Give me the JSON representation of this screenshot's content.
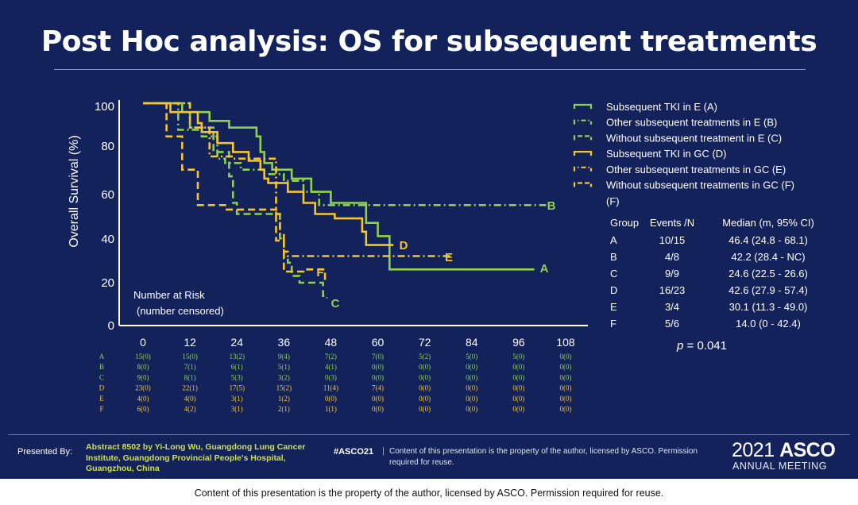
{
  "title": "Post Hoc analysis: OS for subsequent treatments",
  "chart_data": {
    "type": "line",
    "subtype": "kaplan-meier",
    "ylabel": "Overall Survival (%)",
    "xlim": [
      0,
      108
    ],
    "ylim": [
      0,
      100
    ],
    "xticks": [
      "0",
      "12",
      "24",
      "36",
      "48",
      "60",
      "72",
      "84",
      "96",
      "108"
    ],
    "yticks": [
      "0",
      "20",
      "40",
      "60",
      "80",
      "100"
    ],
    "series": [
      {
        "key": "A",
        "name": "Subsequent TKI in E (A)",
        "color": "#8fd14f",
        "dash": "solid",
        "end_label": "A",
        "steps": [
          [
            0,
            100
          ],
          [
            6,
            100
          ],
          [
            10,
            96
          ],
          [
            14,
            96
          ],
          [
            17,
            92
          ],
          [
            20,
            92
          ],
          [
            22,
            89
          ],
          [
            28,
            89
          ],
          [
            29,
            85
          ],
          [
            30,
            78
          ],
          [
            31,
            73
          ],
          [
            33,
            70
          ],
          [
            38,
            66
          ],
          [
            41,
            66
          ],
          [
            43,
            60
          ],
          [
            48,
            55
          ],
          [
            52,
            55
          ],
          [
            57,
            46
          ],
          [
            60,
            40
          ],
          [
            63,
            25
          ],
          [
            100,
            25
          ]
        ]
      },
      {
        "key": "B",
        "name": "Other subsequent treatments in E  (B)",
        "color": "#8fd14f",
        "dash": "dashdot",
        "end_label": "B",
        "steps": [
          [
            0,
            100
          ],
          [
            8,
            100
          ],
          [
            9,
            88
          ],
          [
            14,
            88
          ],
          [
            15,
            85
          ],
          [
            18,
            85
          ],
          [
            19,
            75
          ],
          [
            20,
            75
          ],
          [
            21,
            73
          ],
          [
            24,
            73
          ],
          [
            25,
            70
          ],
          [
            30,
            70
          ],
          [
            31,
            68
          ],
          [
            35,
            68
          ],
          [
            36,
            65
          ],
          [
            40,
            65
          ],
          [
            41,
            60
          ],
          [
            44,
            60
          ],
          [
            45,
            54
          ],
          [
            103,
            54
          ]
        ]
      },
      {
        "key": "C",
        "name": "Without subsequent treatment in E  (C)",
        "color": "#8fd14f",
        "dash": "dash",
        "end_label": "C",
        "steps": [
          [
            0,
            100
          ],
          [
            11,
            100
          ],
          [
            12,
            89
          ],
          [
            17,
            89
          ],
          [
            18,
            78
          ],
          [
            21,
            78
          ],
          [
            22,
            67
          ],
          [
            23,
            55
          ],
          [
            24,
            50
          ],
          [
            34,
            50
          ],
          [
            35,
            39
          ],
          [
            36,
            30
          ],
          [
            37,
            28
          ],
          [
            38,
            22
          ],
          [
            39,
            22
          ],
          [
            40,
            19
          ],
          [
            45,
            19
          ],
          [
            46,
            13
          ],
          [
            47,
            12
          ]
        ]
      },
      {
        "key": "D",
        "name": "Subsequent TKI in GC  (D)",
        "color": "#f4c531",
        "dash": "solid",
        "end_label": "D",
        "steps": [
          [
            0,
            100
          ],
          [
            6,
            100
          ],
          [
            7,
            96
          ],
          [
            12,
            96
          ],
          [
            14,
            91
          ],
          [
            15,
            87
          ],
          [
            18,
            87
          ],
          [
            19,
            82
          ],
          [
            22,
            82
          ],
          [
            23,
            78
          ],
          [
            26,
            78
          ],
          [
            27,
            74
          ],
          [
            29,
            74
          ],
          [
            30,
            70
          ],
          [
            31,
            66
          ],
          [
            32,
            64
          ],
          [
            36,
            64
          ],
          [
            37,
            60
          ],
          [
            40,
            60
          ],
          [
            41,
            55
          ],
          [
            43,
            55
          ],
          [
            44,
            50
          ],
          [
            48,
            50
          ],
          [
            49,
            48
          ],
          [
            55,
            48
          ],
          [
            56,
            42
          ],
          [
            57,
            36
          ],
          [
            64,
            36
          ]
        ]
      },
      {
        "key": "E",
        "name": "Other subsequent treatments in GC  (E)",
        "color": "#f4c531",
        "dash": "dashdot",
        "end_label": "E",
        "steps": [
          [
            0,
            100
          ],
          [
            11,
            100
          ],
          [
            12,
            89
          ],
          [
            16,
            89
          ],
          [
            17,
            76
          ],
          [
            22,
            76
          ],
          [
            23,
            75
          ],
          [
            33,
            75
          ],
          [
            34,
            50
          ],
          [
            35,
            41
          ],
          [
            36,
            33
          ],
          [
            37,
            31
          ],
          [
            79,
            31
          ]
        ]
      },
      {
        "key": "F",
        "name": "Without subsequent treatments in GC  (F)",
        "color": "#f4c531",
        "dash": "dash",
        "end_label": "F",
        "steps": [
          [
            0,
            100
          ],
          [
            5,
            100
          ],
          [
            6,
            85
          ],
          [
            9,
            85
          ],
          [
            10,
            70
          ],
          [
            13,
            70
          ],
          [
            14,
            54
          ],
          [
            20,
            54
          ],
          [
            21,
            52
          ],
          [
            33,
            52
          ],
          [
            34,
            38
          ],
          [
            36,
            24
          ],
          [
            40,
            24
          ],
          [
            41,
            25
          ],
          [
            46,
            25
          ],
          [
            46.5,
            20
          ]
        ]
      }
    ],
    "legend_extra": "(F)",
    "table": {
      "headers": [
        "Group",
        "Events /N",
        "Median (m, 95% CI)"
      ],
      "rows": [
        [
          "A",
          "10/15",
          "46.4 (24.8 - 68.1)"
        ],
        [
          "B",
          "4/8",
          "42.2 (28.4 - NC)"
        ],
        [
          "C",
          "9/9",
          "24.6 (22.5 - 26.6)"
        ],
        [
          "D",
          "16/23",
          "42.6 (27.9 - 57.4)"
        ],
        [
          "E",
          "3/4",
          "30.1 (11.3 - 49.0)"
        ],
        [
          "F",
          "5/6",
          "14.0 (0 - 42.4)"
        ]
      ]
    },
    "p_label": "p",
    "p_value": " = 0.041",
    "risk": {
      "title": "Number at Risk",
      "subtitle": "(number censored)",
      "rows": [
        {
          "label": "A",
          "color": "#8fd14f",
          "values": [
            "15(0)",
            "15(0)",
            "13(2)",
            "9(4)",
            "7(2)",
            "7(0)",
            "5(2)",
            "5(0)",
            "5(0)",
            "0(0)"
          ]
        },
        {
          "label": "B",
          "color": "#8fd14f",
          "values": [
            "8(0)",
            "7(1)",
            "6(1)",
            "5(1)",
            "4(1)",
            "0(0)",
            "0(0)",
            "0(0)",
            "0(0)",
            "0(0)"
          ]
        },
        {
          "label": "C",
          "color": "#8fd14f",
          "values": [
            "9(0)",
            "8(1)",
            "5(3)",
            "3(2)",
            "0(3)",
            "0(0)",
            "0(0)",
            "0(0)",
            "0(0)",
            "0(0)"
          ]
        },
        {
          "label": "D",
          "color": "#f4c531",
          "values": [
            "23(0)",
            "22(1)",
            "17(5)",
            "15(2)",
            "11(4)",
            "7(4)",
            "0(0)",
            "0(0)",
            "0(0)",
            "0(0)"
          ]
        },
        {
          "label": "E",
          "color": "#f4c531",
          "values": [
            "4(0)",
            "4(0)",
            "3(1)",
            "1(2)",
            "0(0)",
            "0(0)",
            "0(0)",
            "0(0)",
            "0(0)",
            "0(0)"
          ]
        },
        {
          "label": "F",
          "color": "#f4c531",
          "values": [
            "6(0)",
            "4(2)",
            "3(1)",
            "2(1)",
            "1(1)",
            "0(0)",
            "0(0)",
            "0(0)",
            "0(0)",
            "0(0)"
          ]
        }
      ]
    }
  },
  "footer": {
    "presented_by": "Presented By:",
    "abstract": "Abstract 8502 by Yi-Long Wu, Guangdong Lung Cancer Institute, Guangdong Provincial People's Hospital, Guangzhou, China",
    "hashtag": "#ASCO21",
    "separator": "|",
    "notice": "Content of this presentation is the property of the author, licensed by ASCO. Permission required for reuse.",
    "asco_year": "2021",
    "asco_name": "ASCO",
    "asco_sub": "ANNUAL MEETING"
  },
  "bottom_note": "Content of this presentation is the property of the author, licensed by ASCO. Permission required for reuse."
}
